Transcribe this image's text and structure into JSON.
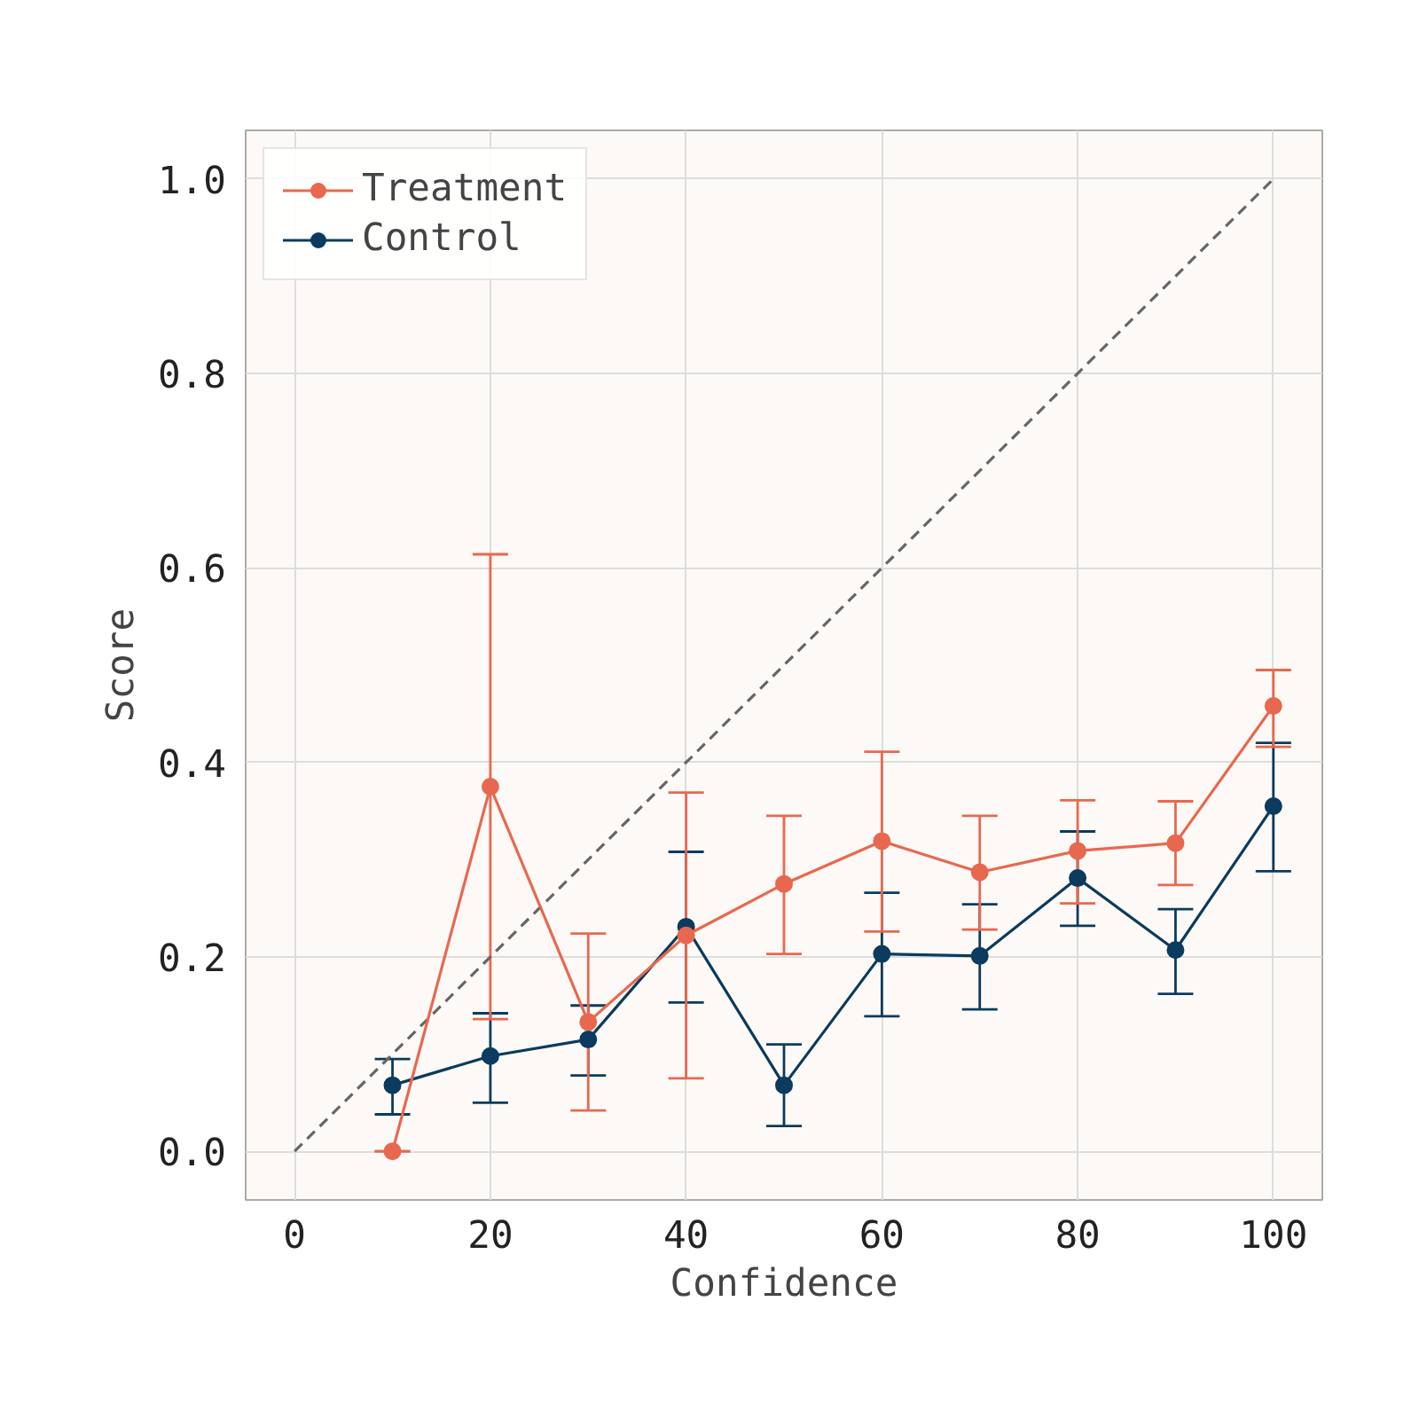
{
  "chart_data": {
    "type": "line",
    "xlabel": "Confidence",
    "ylabel": "Score",
    "xlim": [
      -5,
      105
    ],
    "ylim": [
      -0.05,
      1.05
    ],
    "xticks": [
      0,
      20,
      40,
      60,
      80,
      100
    ],
    "yticks": [
      {
        "value": 0,
        "label": "0.0"
      },
      {
        "value": 0.2,
        "label": "0.2"
      },
      {
        "value": 0.4,
        "label": "0.4"
      },
      {
        "value": 0.6,
        "label": "0.6"
      },
      {
        "value": 0.8,
        "label": "0.8"
      },
      {
        "value": 1,
        "label": "1.0"
      }
    ],
    "grid": true,
    "legend": "top left",
    "marker": "circle",
    "series": [
      {
        "name": "Treatment",
        "color": "#e8684f",
        "x": [
          10,
          20,
          30,
          40,
          50,
          60,
          70,
          80,
          90,
          100
        ],
        "values": [
          0.0,
          0.375,
          0.133,
          0.222,
          0.275,
          0.319,
          0.287,
          0.309,
          0.317,
          0.458
        ],
        "errors": [
          [
            0,
            0
          ],
          [
            0.136,
            0.614
          ],
          [
            0.042,
            0.224
          ],
          [
            0.075,
            0.369
          ],
          [
            0.203,
            0.345
          ],
          [
            0.226,
            0.411
          ],
          [
            0.228,
            0.345
          ],
          [
            0.255,
            0.361
          ],
          [
            0.274,
            0.36
          ],
          [
            0.416,
            0.495
          ]
        ]
      },
      {
        "name": "Control",
        "color": "#0b3b5e",
        "x": [
          10,
          20,
          30,
          40,
          50,
          60,
          70,
          80,
          90,
          100
        ],
        "values": [
          0.068,
          0.098,
          0.115,
          0.231,
          0.068,
          0.203,
          0.201,
          0.281,
          0.207,
          0.355
        ],
        "errors": [
          [
            0.038,
            0.095
          ],
          [
            0.05,
            0.142
          ],
          [
            0.078,
            0.15
          ],
          [
            0.153,
            0.308
          ],
          [
            0.026,
            0.11
          ],
          [
            0.139,
            0.266
          ],
          [
            0.146,
            0.254
          ],
          [
            0.232,
            0.329
          ],
          [
            0.162,
            0.249
          ],
          [
            0.288,
            0.42
          ]
        ]
      },
      {
        "color": "#666666",
        "x": [
          0,
          100
        ],
        "values": [
          0,
          1
        ],
        "line_style": "dashed",
        "marker": "none"
      }
    ]
  }
}
